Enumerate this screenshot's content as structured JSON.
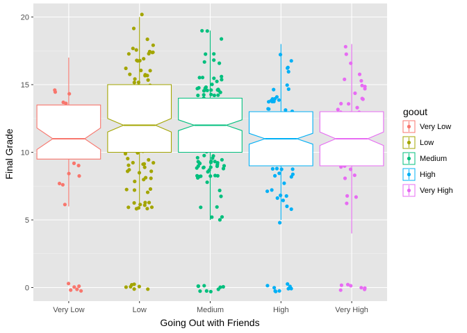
{
  "chart_data": {
    "type": "boxplot",
    "xlabel": "Going Out with Friends",
    "ylabel": "Final Grade",
    "categories": [
      "Very Low",
      "Low",
      "Medium",
      "High",
      "Very High"
    ],
    "ylim": [
      -1,
      21
    ],
    "y_ticks": [
      0,
      5,
      10,
      15,
      20
    ],
    "grid": true,
    "notched": true,
    "jittered_points": true,
    "background": "#e5e5e5",
    "legend": {
      "title": "goout",
      "position": "right",
      "entries": [
        "Very Low",
        "Low",
        "Medium",
        "High",
        "Very High"
      ]
    },
    "colors": [
      "#F8766D",
      "#A3A500",
      "#00BF7D",
      "#00B0F6",
      "#E76BF3"
    ],
    "boxes": [
      {
        "category": "Very Low",
        "whisker_low": 6,
        "q1": 9.5,
        "median": 11,
        "q3": 13.5,
        "whisker_high": 17,
        "notch_low": 10.2,
        "notch_high": 11.8,
        "n": 23
      },
      {
        "category": "Low",
        "whisker_low": 6,
        "q1": 10,
        "median": 12,
        "q3": 15,
        "whisker_high": 20,
        "notch_low": 11.5,
        "notch_high": 12.5,
        "n": 103
      },
      {
        "category": "Medium",
        "whisker_low": 5,
        "q1": 10,
        "median": 12,
        "q3": 14,
        "whisker_high": 19,
        "notch_low": 11.6,
        "notch_high": 12.4,
        "n": 130
      },
      {
        "category": "High",
        "whisker_low": 5,
        "q1": 9,
        "median": 11,
        "q3": 13,
        "whisker_high": 18,
        "notch_low": 10.6,
        "notch_high": 11.4,
        "n": 86
      },
      {
        "category": "Very High",
        "whisker_low": 4,
        "q1": 9,
        "median": 11,
        "q3": 13,
        "whisker_high": 18,
        "notch_low": 10.5,
        "notch_high": 11.5,
        "n": 53
      }
    ],
    "zero_grade_counts": [
      6,
      7,
      9,
      9,
      7
    ]
  }
}
